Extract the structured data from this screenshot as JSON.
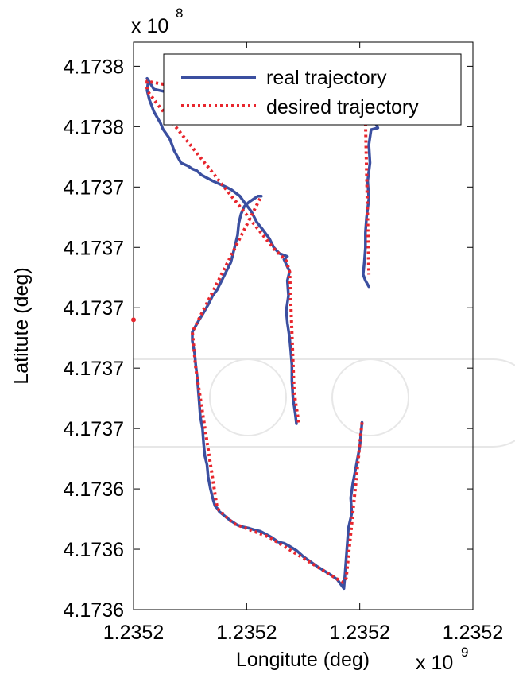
{
  "chart_data": {
    "type": "line",
    "xlabel": "Longitute (deg)",
    "ylabel": "Latitute (deg)",
    "x_multiplier": "x 10",
    "x_multiplier_exp": "9",
    "y_multiplier": "x 10",
    "y_multiplier_exp": "8",
    "xlim": [
      0,
      3
    ],
    "ylim": [
      0,
      9.4
    ],
    "x_ticks": [
      {
        "value": 0,
        "label": "1.2352"
      },
      {
        "value": 1,
        "label": "1.2352"
      },
      {
        "value": 2,
        "label": "1.2352"
      },
      {
        "value": 3,
        "label": "1.2352"
      }
    ],
    "y_ticks": [
      {
        "value": 0,
        "label": "4.1736"
      },
      {
        "value": 1,
        "label": "4.1736"
      },
      {
        "value": 2,
        "label": "4.1736"
      },
      {
        "value": 3,
        "label": "4.1737"
      },
      {
        "value": 4,
        "label": "4.1737"
      },
      {
        "value": 5,
        "label": "4.1737"
      },
      {
        "value": 6,
        "label": "4.1737"
      },
      {
        "value": 7,
        "label": "4.1737"
      },
      {
        "value": 8,
        "label": "4.1738"
      },
      {
        "value": 9,
        "label": "4.1738"
      }
    ],
    "grid": false,
    "legend_position": "top-right",
    "series": [
      {
        "name": "real trajectory",
        "color": "#3b4fa0",
        "style": "solid",
        "points": [
          [
            1.44,
            3.08
          ],
          [
            1.43,
            3.25
          ],
          [
            1.41,
            3.5
          ],
          [
            1.4,
            3.8
          ],
          [
            1.4,
            4.05
          ],
          [
            1.39,
            4.3
          ],
          [
            1.38,
            4.5
          ],
          [
            1.36,
            4.75
          ],
          [
            1.35,
            4.95
          ],
          [
            1.37,
            5.2
          ],
          [
            1.36,
            5.45
          ],
          [
            1.38,
            5.6
          ],
          [
            1.33,
            5.8
          ],
          [
            1.36,
            5.85
          ],
          [
            1.29,
            5.9
          ],
          [
            1.24,
            6.0
          ],
          [
            1.2,
            6.15
          ],
          [
            1.14,
            6.3
          ],
          [
            1.09,
            6.42
          ],
          [
            1.04,
            6.6
          ],
          [
            0.99,
            6.72
          ],
          [
            0.94,
            6.85
          ],
          [
            0.87,
            6.95
          ],
          [
            0.82,
            7.0
          ],
          [
            0.76,
            7.05
          ],
          [
            0.7,
            7.1
          ],
          [
            0.65,
            7.15
          ],
          [
            0.6,
            7.2
          ],
          [
            0.56,
            7.27
          ],
          [
            0.52,
            7.3
          ],
          [
            0.48,
            7.35
          ],
          [
            0.42,
            7.4
          ],
          [
            0.39,
            7.5
          ],
          [
            0.36,
            7.6
          ],
          [
            0.34,
            7.7
          ],
          [
            0.32,
            7.8
          ],
          [
            0.29,
            7.88
          ],
          [
            0.26,
            7.96
          ],
          [
            0.24,
            8.05
          ],
          [
            0.21,
            8.15
          ],
          [
            0.18,
            8.25
          ],
          [
            0.16,
            8.35
          ],
          [
            0.14,
            8.45
          ],
          [
            0.12,
            8.6
          ],
          [
            0.13,
            8.75
          ],
          [
            0.12,
            8.8
          ],
          [
            0.18,
            8.62
          ],
          [
            0.28,
            8.58
          ],
          [
            0.42,
            8.55
          ],
          [
            0.6,
            8.52
          ],
          [
            0.74,
            8.48
          ],
          [
            0.88,
            8.46
          ],
          [
            1.0,
            8.46
          ],
          [
            1.1,
            8.45
          ],
          [
            1.2,
            8.47
          ],
          [
            1.28,
            8.46
          ],
          [
            1.36,
            8.44
          ],
          [
            1.44,
            8.42
          ],
          [
            1.52,
            8.4
          ],
          [
            1.6,
            8.38
          ],
          [
            1.68,
            8.38
          ],
          [
            1.75,
            8.35
          ],
          [
            1.82,
            8.33
          ],
          [
            1.88,
            8.32
          ],
          [
            1.95,
            8.25
          ],
          [
            1.98,
            8.2
          ],
          [
            2.04,
            8.16
          ],
          [
            2.08,
            8.12
          ],
          [
            2.14,
            8.05
          ],
          [
            2.16,
            7.98
          ],
          [
            2.1,
            7.95
          ],
          [
            2.08,
            7.7
          ],
          [
            2.09,
            7.4
          ],
          [
            2.07,
            7.1
          ],
          [
            2.08,
            6.8
          ],
          [
            2.06,
            6.5
          ],
          [
            2.05,
            6.25
          ],
          [
            2.05,
            6.0
          ],
          [
            2.04,
            5.75
          ],
          [
            2.03,
            5.55
          ],
          [
            2.05,
            5.45
          ],
          [
            2.08,
            5.35
          ]
        ]
      },
      {
        "name": "real trajectory",
        "color": "#3b4fa0",
        "style": "solid",
        "points": [
          [
            2.02,
            3.1
          ],
          [
            2.01,
            2.9
          ],
          [
            2.0,
            2.7
          ],
          [
            1.98,
            2.5
          ],
          [
            1.96,
            2.3
          ],
          [
            1.94,
            2.1
          ],
          [
            1.92,
            1.85
          ],
          [
            1.93,
            1.6
          ],
          [
            1.9,
            1.35
          ],
          [
            1.89,
            1.1
          ],
          [
            1.88,
            0.85
          ],
          [
            1.87,
            0.6
          ],
          [
            1.86,
            0.35
          ],
          [
            1.84,
            0.4
          ],
          [
            1.8,
            0.5
          ],
          [
            1.74,
            0.58
          ],
          [
            1.68,
            0.65
          ],
          [
            1.62,
            0.72
          ],
          [
            1.56,
            0.8
          ],
          [
            1.5,
            0.88
          ],
          [
            1.44,
            0.98
          ],
          [
            1.38,
            1.05
          ],
          [
            1.33,
            1.1
          ],
          [
            1.28,
            1.12
          ],
          [
            1.22,
            1.2
          ],
          [
            1.17,
            1.25
          ],
          [
            1.12,
            1.3
          ],
          [
            1.07,
            1.32
          ],
          [
            1.02,
            1.35
          ],
          [
            0.97,
            1.37
          ],
          [
            0.92,
            1.4
          ],
          [
            0.88,
            1.45
          ],
          [
            0.84,
            1.5
          ],
          [
            0.8,
            1.56
          ],
          [
            0.76,
            1.62
          ],
          [
            0.74,
            1.68
          ],
          [
            0.72,
            1.72
          ],
          [
            0.7,
            1.85
          ],
          [
            0.68,
            2.0
          ],
          [
            0.66,
            2.2
          ],
          [
            0.65,
            2.4
          ],
          [
            0.63,
            2.55
          ],
          [
            0.62,
            2.75
          ],
          [
            0.61,
            3.0
          ],
          [
            0.59,
            3.2
          ],
          [
            0.58,
            3.45
          ],
          [
            0.57,
            3.7
          ],
          [
            0.56,
            3.9
          ],
          [
            0.55,
            4.05
          ],
          [
            0.54,
            4.25
          ],
          [
            0.52,
            4.45
          ],
          [
            0.52,
            4.6
          ],
          [
            0.55,
            4.7
          ],
          [
            0.58,
            4.8
          ],
          [
            0.62,
            4.92
          ],
          [
            0.66,
            5.05
          ],
          [
            0.7,
            5.2
          ],
          [
            0.74,
            5.3
          ],
          [
            0.78,
            5.45
          ],
          [
            0.82,
            5.6
          ],
          [
            0.86,
            5.75
          ],
          [
            0.88,
            5.9
          ],
          [
            0.9,
            6.05
          ],
          [
            0.92,
            6.2
          ],
          [
            0.93,
            6.4
          ],
          [
            0.95,
            6.55
          ],
          [
            0.98,
            6.68
          ],
          [
            1.02,
            6.75
          ],
          [
            1.06,
            6.8
          ],
          [
            1.1,
            6.85
          ],
          [
            1.13,
            6.85
          ]
        ]
      },
      {
        "name": "desired trajectory",
        "color": "#e8262d",
        "style": "dotted",
        "points": [
          [
            1.46,
            3.1
          ],
          [
            1.42,
            3.6
          ],
          [
            1.4,
            4.6
          ],
          [
            1.38,
            5.6
          ],
          [
            1.35,
            5.78
          ],
          [
            1.24,
            5.98
          ],
          [
            0.78,
            7.05
          ],
          [
            0.2,
            8.4
          ],
          [
            0.12,
            8.6
          ],
          [
            0.12,
            8.75
          ],
          [
            2.05,
            8.12
          ],
          [
            2.08,
            5.55
          ]
        ]
      },
      {
        "name": "desired trajectory",
        "color": "#e8262d",
        "style": "dotted",
        "points": [
          [
            2.02,
            3.1
          ],
          [
            1.88,
            0.52
          ],
          [
            1.85,
            0.45
          ],
          [
            1.2,
            1.2
          ],
          [
            0.88,
            1.43
          ],
          [
            0.74,
            1.68
          ],
          [
            0.55,
            4.0
          ],
          [
            0.52,
            4.6
          ],
          [
            1.13,
            6.85
          ]
        ]
      }
    ],
    "markers": [
      {
        "x": 0,
        "y": 4.8,
        "color": "#e8262d"
      }
    ]
  }
}
